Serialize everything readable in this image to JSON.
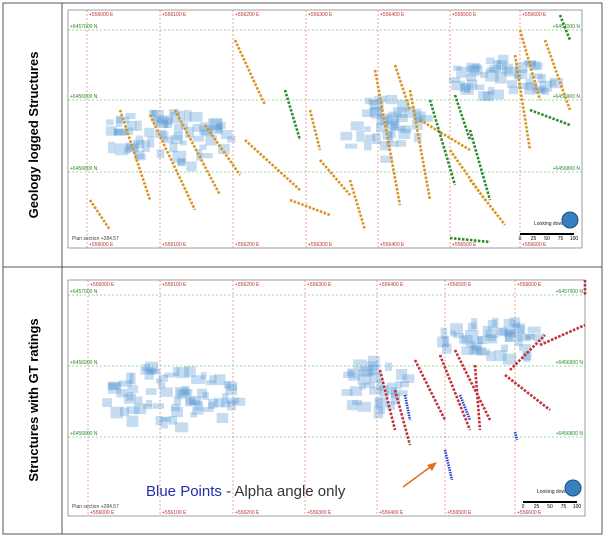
{
  "rows": [
    {
      "label": "Geology logged Structures",
      "map": {
        "east_labels": [
          "+556000 E",
          "+556100 E",
          "+556200 E",
          "+556300 E",
          "+556400 E",
          "+556500 E",
          "+556600 E"
        ],
        "north_labels": [
          "+6457000 N",
          "+6456900 N",
          "+6456800 N"
        ],
        "view": "Looking down",
        "scale_labels": [
          "0",
          "25",
          "50",
          "75",
          "100"
        ],
        "section": "Plan section +284.57"
      }
    },
    {
      "label": "Structures with GT ratings",
      "map": {
        "east_labels": [
          "+556000 E",
          "+556100 E",
          "+556200 E",
          "+556300 E",
          "+556400 E",
          "+556500 E",
          "+556600 E"
        ],
        "north_labels": [
          "+6457000 N",
          "+6456900 N",
          "+6456800 N"
        ],
        "view": "Looking down",
        "scale_labels": [
          "0",
          "25",
          "50",
          "75",
          "100"
        ],
        "section": "Plan section +284.57",
        "annotation": {
          "highlight": "Blue Points",
          "rest": "- Alpha angle only"
        }
      }
    }
  ]
}
